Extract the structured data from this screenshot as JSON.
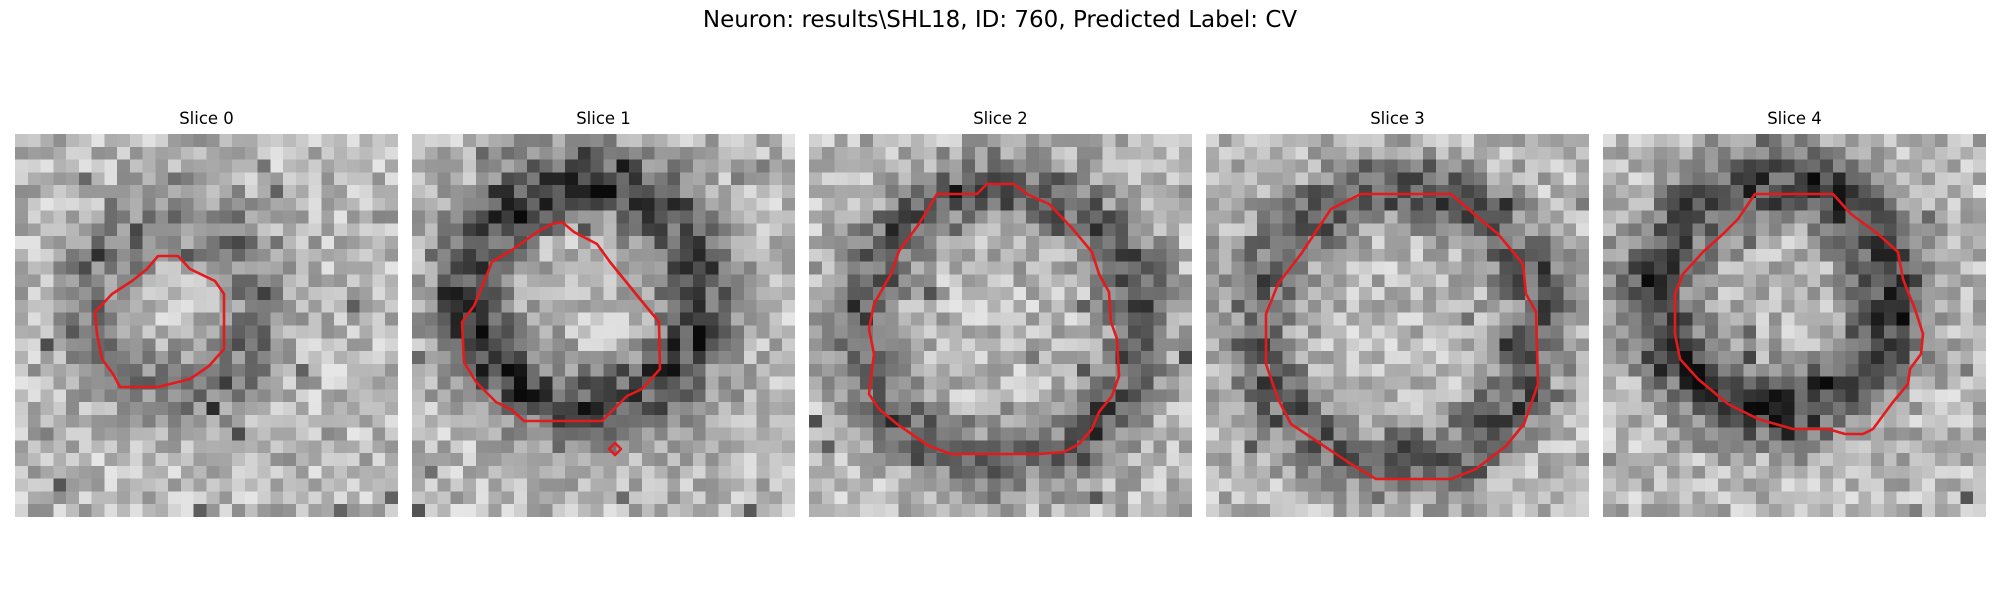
{
  "figure": {
    "title": "Neuron: results\\SHL18, ID: 760, Predicted Label: CV"
  },
  "colors": {
    "contour": "#e41a1c",
    "background": "#ffffff"
  },
  "slices": [
    {
      "title": "Slice 0",
      "ring_darkness": "weak"
    },
    {
      "title": "Slice 1",
      "ring_darkness": "strong"
    },
    {
      "title": "Slice 2",
      "ring_darkness": "medium"
    },
    {
      "title": "Slice 3",
      "ring_darkness": "medium"
    },
    {
      "title": "Slice 4",
      "ring_darkness": "strong"
    }
  ]
}
